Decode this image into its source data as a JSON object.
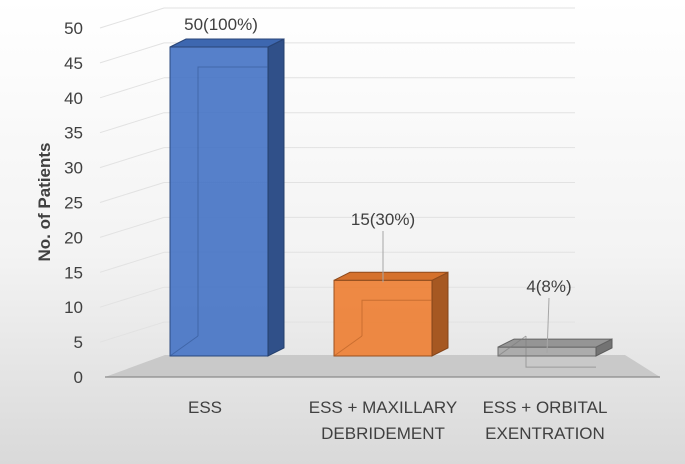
{
  "chart_data": {
    "type": "bar",
    "style": "3d-column",
    "title": "",
    "xlabel": "",
    "ylabel": "No. of Patients",
    "ylim": [
      0,
      50
    ],
    "yticks": [
      0,
      5,
      10,
      15,
      20,
      25,
      30,
      35,
      40,
      45,
      50
    ],
    "categories": [
      [
        "ESS"
      ],
      [
        "ESS + MAXILLARY",
        "DEBRIDEMENT"
      ],
      [
        "ESS + ORBITAL",
        "EXENTRATION"
      ]
    ],
    "values": [
      50,
      15,
      4
    ],
    "data_labels": [
      "50(100%)",
      "15(30%)",
      "4(8%)"
    ],
    "colors": [
      "#4472C4",
      "#ED7D31",
      "#A5A5A5"
    ],
    "grid": true,
    "legend": "none"
  }
}
